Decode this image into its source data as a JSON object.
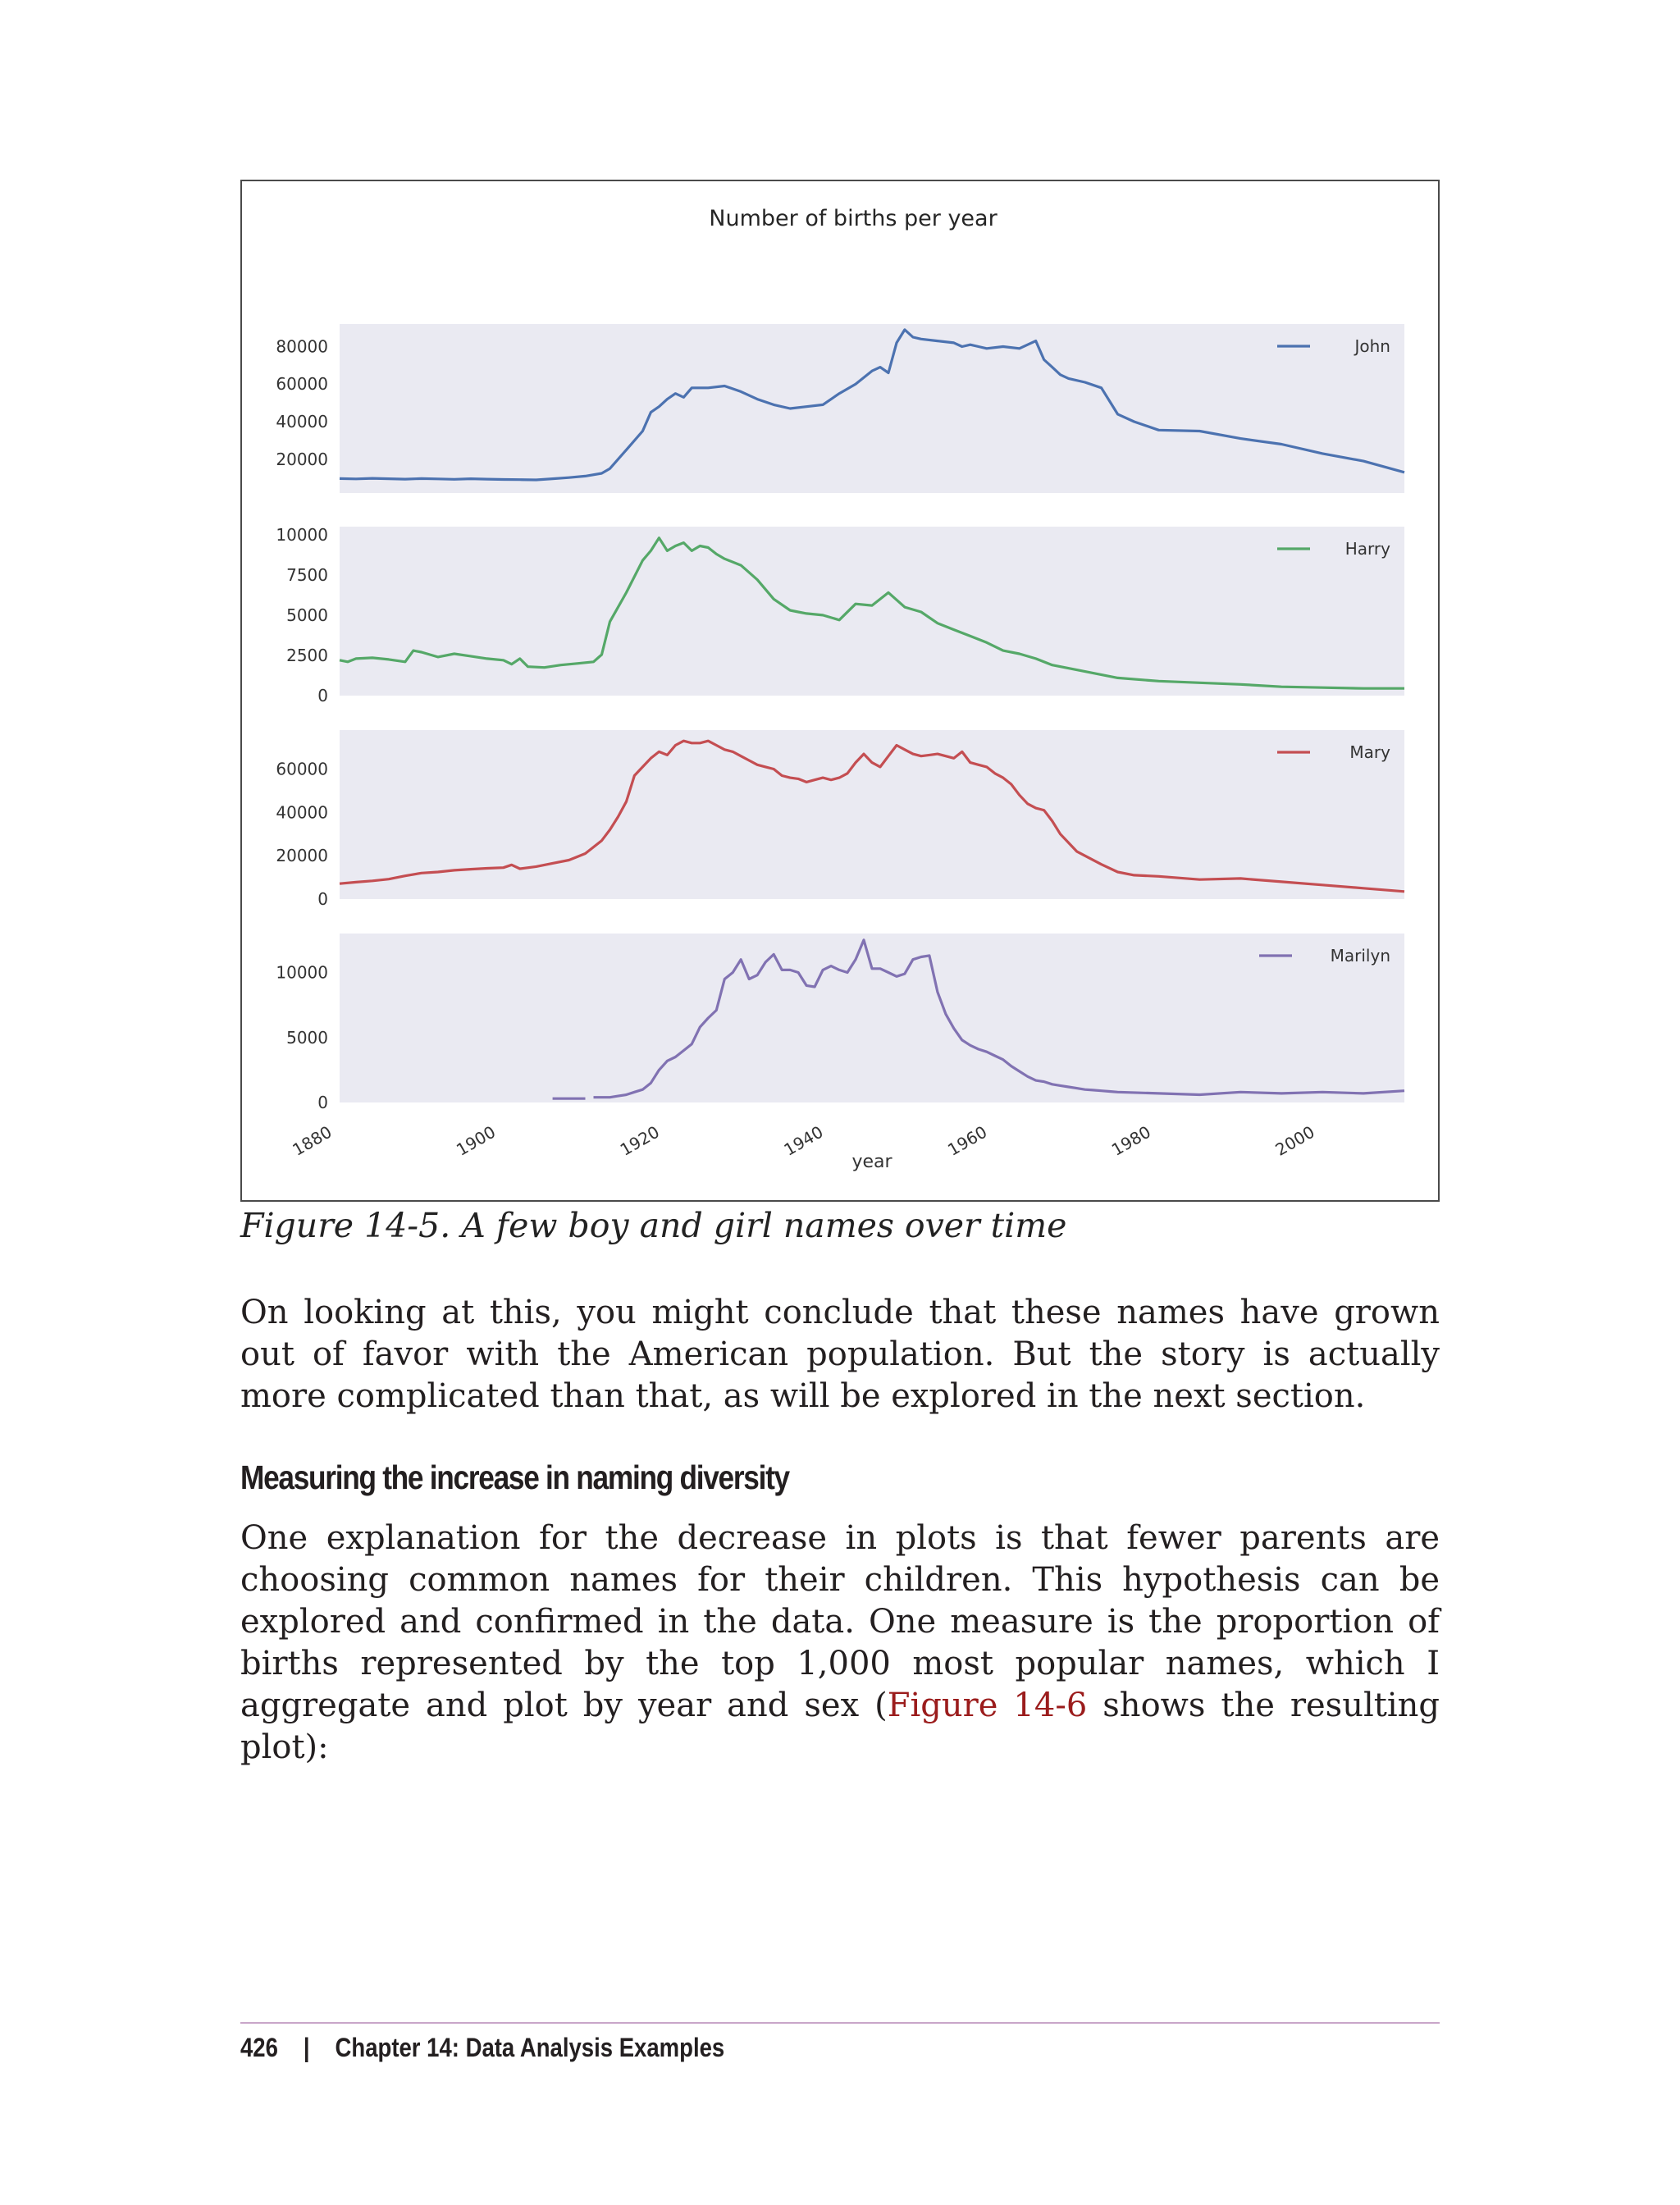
{
  "chart_data": {
    "type": "line",
    "title": "Number of births per year",
    "xlabel": "year",
    "xlim": [
      1880,
      2010
    ],
    "xticks": [
      "1880",
      "1900",
      "1920",
      "1940",
      "1960",
      "1980",
      "2000"
    ],
    "grid": false,
    "legend_placement": "top-right",
    "panels": [
      {
        "series_name": "John",
        "color": "#4c72b0",
        "ylim": [
          2000,
          92000
        ],
        "yticks": [
          "20000",
          "40000",
          "60000",
          "80000"
        ],
        "x": [
          1880,
          1882,
          1884,
          1886,
          1888,
          1890,
          1892,
          1894,
          1896,
          1898,
          1900,
          1902,
          1904,
          1906,
          1908,
          1910,
          1912,
          1913,
          1915,
          1917,
          1918,
          1919,
          1920,
          1921,
          1922,
          1923,
          1925,
          1927,
          1929,
          1931,
          1933,
          1935,
          1937,
          1939,
          1941,
          1943,
          1945,
          1946,
          1947,
          1948,
          1949,
          1950,
          1951,
          1953,
          1955,
          1956,
          1957,
          1958,
          1959,
          1961,
          1963,
          1965,
          1966,
          1967,
          1968,
          1969,
          1971,
          1973,
          1975,
          1977,
          1980,
          1985,
          1990,
          1995,
          2000,
          2005,
          2010
        ],
        "values": [
          9700,
          9500,
          9800,
          9600,
          9400,
          9700,
          9500,
          9300,
          9600,
          9400,
          9200,
          9100,
          9000,
          9600,
          10200,
          11000,
          12500,
          15000,
          25000,
          35000,
          45000,
          48000,
          52000,
          55000,
          53000,
          58000,
          58000,
          59000,
          56000,
          52000,
          49000,
          47000,
          48000,
          49000,
          55000,
          60000,
          67000,
          69000,
          66000,
          82000,
          89000,
          85000,
          84000,
          83000,
          82000,
          80000,
          81000,
          80000,
          79000,
          80000,
          79000,
          83000,
          73000,
          69000,
          65000,
          63000,
          61000,
          58000,
          44000,
          40000,
          35500,
          35000,
          31000,
          28000,
          23000,
          19000,
          13000
        ]
      },
      {
        "series_name": "Harry",
        "color": "#55a868",
        "ylim": [
          0,
          10500
        ],
        "yticks": [
          "0",
          "2500",
          "5000",
          "7500",
          "10000"
        ],
        "x": [
          1880,
          1881,
          1882,
          1884,
          1886,
          1888,
          1889,
          1890,
          1892,
          1894,
          1896,
          1898,
          1900,
          1901,
          1902,
          1903,
          1905,
          1907,
          1909,
          1911,
          1912,
          1913,
          1915,
          1917,
          1918,
          1919,
          1920,
          1921,
          1922,
          1923,
          1924,
          1925,
          1926,
          1927,
          1929,
          1931,
          1933,
          1935,
          1936,
          1937,
          1939,
          1941,
          1943,
          1945,
          1947,
          1949,
          1951,
          1953,
          1955,
          1957,
          1959,
          1961,
          1963,
          1965,
          1967,
          1970,
          1975,
          1980,
          1985,
          1990,
          1995,
          2000,
          2005,
          2010
        ],
        "values": [
          2200,
          2100,
          2300,
          2350,
          2250,
          2100,
          2800,
          2700,
          2400,
          2600,
          2450,
          2300,
          2200,
          1950,
          2300,
          1800,
          1750,
          1900,
          2000,
          2100,
          2550,
          4600,
          6400,
          8400,
          9000,
          9800,
          9000,
          9300,
          9500,
          9000,
          9300,
          9200,
          8800,
          8500,
          8100,
          7200,
          6000,
          5300,
          5200,
          5100,
          5000,
          4700,
          5700,
          5600,
          6400,
          5500,
          5200,
          4500,
          4100,
          3700,
          3300,
          2800,
          2600,
          2300,
          1900,
          1600,
          1100,
          900,
          800,
          700,
          550,
          500,
          450,
          450
        ]
      },
      {
        "series_name": "Mary",
        "color": "#c44e52",
        "ylim": [
          0,
          78000
        ],
        "yticks": [
          "0",
          "20000",
          "40000",
          "60000"
        ],
        "x": [
          1880,
          1882,
          1884,
          1886,
          1888,
          1890,
          1892,
          1894,
          1896,
          1898,
          1900,
          1901,
          1902,
          1904,
          1906,
          1908,
          1909,
          1910,
          1911,
          1912,
          1913,
          1914,
          1915,
          1916,
          1917,
          1918,
          1919,
          1920,
          1921,
          1922,
          1923,
          1924,
          1925,
          1926,
          1927,
          1928,
          1929,
          1930,
          1931,
          1932,
          1933,
          1934,
          1935,
          1936,
          1937,
          1938,
          1939,
          1940,
          1941,
          1942,
          1943,
          1944,
          1945,
          1946,
          1947,
          1948,
          1949,
          1950,
          1951,
          1952,
          1953,
          1954,
          1955,
          1956,
          1957,
          1958,
          1959,
          1960,
          1961,
          1962,
          1963,
          1964,
          1965,
          1966,
          1967,
          1968,
          1970,
          1973,
          1975,
          1977,
          1980,
          1985,
          1990,
          1995,
          2000,
          2005,
          2010
        ],
        "values": [
          7100,
          7800,
          8400,
          9200,
          10700,
          12000,
          12500,
          13300,
          13800,
          14200,
          14500,
          15800,
          14000,
          15000,
          16500,
          18000,
          19500,
          21000,
          24000,
          27000,
          32000,
          38000,
          45000,
          57000,
          61000,
          65000,
          68000,
          66500,
          71000,
          73000,
          72000,
          72000,
          73000,
          71000,
          69000,
          68000,
          66000,
          64000,
          62000,
          61000,
          60000,
          57000,
          56000,
          55500,
          54000,
          55000,
          56000,
          55000,
          56000,
          58000,
          63000,
          67000,
          63000,
          61000,
          66000,
          71000,
          69000,
          67000,
          66000,
          66500,
          67000,
          66000,
          65000,
          68000,
          63000,
          62000,
          61000,
          58000,
          56000,
          53000,
          48000,
          44000,
          42000,
          41000,
          36000,
          30000,
          22000,
          16000,
          12500,
          11000,
          10500,
          9000,
          9500,
          8000,
          6500,
          5000,
          3500
        ]
      },
      {
        "series_name": "Marilyn",
        "color": "#8172b2",
        "ylim": [
          0,
          13000
        ],
        "yticks": [
          "0",
          "5000",
          "10000"
        ],
        "x": [
          1906,
          1907,
          1908,
          1909,
          1910,
          null,
          1911,
          1912,
          1913,
          1914,
          1915,
          1916,
          1917,
          1918,
          1919,
          1920,
          1921,
          1922,
          1923,
          1924,
          1925,
          1926,
          1927,
          1928,
          1929,
          1930,
          1931,
          1932,
          1933,
          1934,
          1935,
          1936,
          1937,
          1938,
          1939,
          1940,
          1941,
          1942,
          1943,
          1944,
          1945,
          1946,
          1947,
          1948,
          1949,
          1950,
          1951,
          1952,
          1953,
          1954,
          1955,
          1956,
          1957,
          1958,
          1959,
          1960,
          1961,
          1962,
          1963,
          1964,
          1965,
          1966,
          1967,
          1968,
          1969,
          1970,
          1971,
          1972,
          1973,
          1974,
          1975,
          1980,
          1985,
          1990,
          1995,
          2000,
          2005,
          2010
        ],
        "values": [
          300,
          300,
          300,
          300,
          300,
          null,
          400,
          400,
          400,
          500,
          600,
          800,
          1000,
          1500,
          2500,
          3200,
          3500,
          4000,
          4500,
          5800,
          6500,
          7100,
          9500,
          10000,
          11000,
          9500,
          9800,
          10800,
          11400,
          10200,
          10200,
          10000,
          9000,
          8900,
          10200,
          10500,
          10200,
          10000,
          11000,
          12500,
          10300,
          10300,
          10000,
          9700,
          9900,
          11000,
          11200,
          11300,
          8500,
          6800,
          5700,
          4800,
          4400,
          4100,
          3900,
          3600,
          3300,
          2800,
          2400,
          2000,
          1700,
          1600,
          1400,
          1300,
          1200,
          1100,
          1000,
          950,
          900,
          850,
          800,
          700,
          600,
          800,
          700,
          800,
          700,
          900
        ]
      }
    ]
  },
  "figure": {
    "caption": "Figure 14-5. A few boy and girl names over time"
  },
  "body": {
    "paragraph1": "On looking at this, you might conclude that these names have grown out of favor with the American population. But the story is actually more complicated than that, as will be explored in the next section.",
    "section_heading": "Measuring the increase in naming diversity",
    "paragraph2_before_ref": "One explanation for the decrease in plots is that fewer parents are choosing common names for their children. This hypothesis can be explored and confirmed in the data. One measure is the proportion of births represented by the top 1,000 most popular names, which I aggregate and plot by year and sex (",
    "paragraph2_ref": "Figure 14-6",
    "paragraph2_after_ref": " shows the resulting plot):"
  },
  "footer": {
    "page_number": "426",
    "separator": "|",
    "chapter": "Chapter 14: Data Analysis Examples"
  }
}
